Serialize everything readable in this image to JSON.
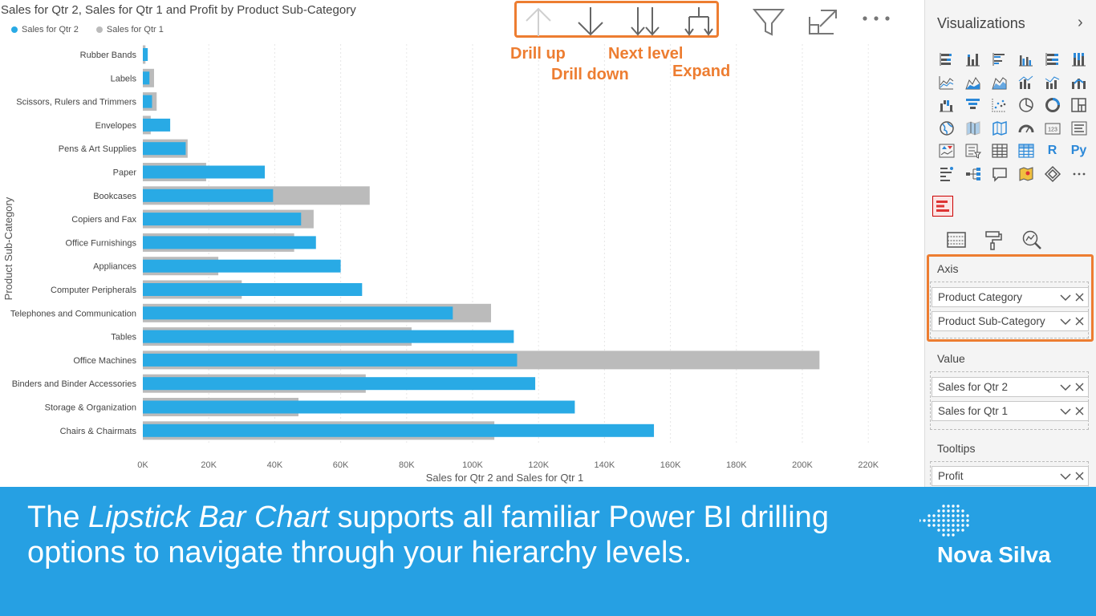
{
  "chart": {
    "title": "Sales for Qtr 2, Sales for Qtr 1 and Profit by Product Sub-Category",
    "legend": [
      {
        "label": "Sales for Qtr 2",
        "color": "#29AAE5"
      },
      {
        "label": "Sales for Qtr 1",
        "color": "#BBBBBB"
      }
    ],
    "toolbar": {
      "icons": [
        "drill-up-icon",
        "drill-down-icon",
        "next-level-icon",
        "expand-icon"
      ],
      "callouts": {
        "drill_up": "Drill up",
        "drill_down": "Drill down",
        "next_level": "Next level",
        "expand": "Expand"
      }
    },
    "header_icons": [
      "filter-icon",
      "focus-mode-icon",
      "more-options-icon"
    ]
  },
  "chart_data": {
    "type": "bar",
    "orientation": "horizontal",
    "variant": "lipstick",
    "title": "Sales for Qtr 2, Sales for Qtr 1 and Profit by Product Sub-Category",
    "xlabel": "Sales for Qtr 2 and Sales for Qtr 1",
    "ylabel": "Product Sub-Category",
    "xlim": [
      0,
      220000
    ],
    "x_ticks": [
      "0K",
      "20K",
      "40K",
      "60K",
      "80K",
      "100K",
      "120K",
      "140K",
      "160K",
      "180K",
      "200K",
      "220K"
    ],
    "x_tick_values": [
      0,
      20000,
      40000,
      60000,
      80000,
      100000,
      120000,
      140000,
      160000,
      180000,
      200000,
      220000
    ],
    "grid": true,
    "legend_position": "top-left",
    "categories": [
      "Rubber Bands",
      "Labels",
      "Scissors, Rulers and Trimmers",
      "Envelopes",
      "Pens & Art Supplies",
      "Paper",
      "Bookcases",
      "Copiers and Fax",
      "Office Furnishings",
      "Appliances",
      "Computer Peripherals",
      "Telephones and Communication",
      "Tables",
      "Office Machines",
      "Binders and Binder Accessories",
      "Storage & Organization",
      "Chairs & Chairmats"
    ],
    "series": [
      {
        "name": "Sales for Qtr 2",
        "color": "#29AAE5",
        "values": [
          1500,
          2000,
          2800,
          8300,
          13000,
          37000,
          39500,
          48000,
          52500,
          60000,
          66500,
          94000,
          112500,
          113500,
          119000,
          131000,
          155000
        ]
      },
      {
        "name": "Sales for Qtr 1",
        "color": "#BBBBBB",
        "values": [
          800,
          3400,
          4200,
          2400,
          13600,
          19200,
          68800,
          51800,
          45900,
          22900,
          30000,
          105600,
          81500,
          205200,
          67600,
          47200,
          106600
        ]
      }
    ]
  },
  "visualizations": {
    "title": "Visualizations",
    "icons": [
      "stacked-bar-icon",
      "stacked-column-icon",
      "clustered-bar-icon",
      "clustered-column-icon",
      "100-stacked-bar-icon",
      "100-stacked-column-icon",
      "line-chart-icon",
      "area-chart-icon",
      "stacked-area-icon",
      "line-clustered-column-icon",
      "line-stacked-column-icon",
      "ribbon-chart-icon",
      "waterfall-icon",
      "funnel-icon",
      "scatter-icon",
      "pie-icon",
      "donut-icon",
      "treemap-icon",
      "map-icon",
      "filled-map-icon",
      "shape-map-icon",
      "gauge-icon",
      "card-icon",
      "multi-row-card-icon",
      "kpi-icon",
      "slicer-icon",
      "table-icon",
      "matrix-icon",
      "r-visual-icon",
      "python-visual-icon",
      "key-influencers-icon",
      "decomposition-tree-icon",
      "qa-icon",
      "arcgis-icon",
      "power-apps-icon",
      "more-visuals-icon"
    ],
    "r_label": "R",
    "py_label": "Py",
    "custom_visual": "lipstick-bar-chart-icon",
    "tabs": [
      "fields-tab-icon",
      "format-tab-icon",
      "analytics-tab-icon"
    ],
    "wells": {
      "axis": {
        "label": "Axis",
        "fields": [
          "Product Category",
          "Product Sub-Category"
        ]
      },
      "value": {
        "label": "Value",
        "fields": [
          "Sales for Qtr 2",
          "Sales for Qtr 1"
        ]
      },
      "tooltips": {
        "label": "Tooltips",
        "fields": [
          "Profit"
        ]
      }
    }
  },
  "banner": {
    "text_before": "The ",
    "text_em": "Lipstick Bar Chart",
    "text_after": " supports all familiar Power BI drilling options to navigate through your hierarchy levels.",
    "background": "#26A0E3",
    "logo_text": "Nova Silva"
  }
}
